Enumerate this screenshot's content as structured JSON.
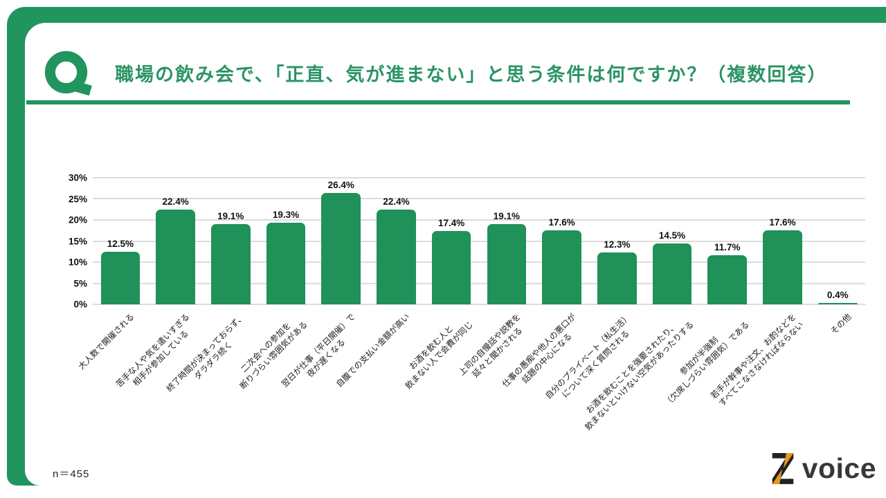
{
  "accent_color": "#21955e",
  "bar_color": "#1f9159",
  "logo_orange": "#e8961e",
  "header": {
    "q_mark": "Q",
    "title": "職場の飲み会で、「正直、気が進まない」と思う条件は何ですか？（複数回答）"
  },
  "footer": {
    "sample_size": "n＝455",
    "brand_text": "voice"
  },
  "chart_data": {
    "type": "bar",
    "title": "職場の飲み会で、「正直、気が進まない」と思う条件は何ですか？（複数回答）",
    "xlabel": "",
    "ylabel": "",
    "ylim": [
      0,
      30
    ],
    "grid": true,
    "yticks": [
      "30%",
      "25%",
      "20%",
      "15%",
      "10%",
      "5%",
      "0%"
    ],
    "categories": [
      "大人数で開催される",
      "苦手な人や気を遣いすぎる\n相手が参加している",
      "終了時間が決まっておらず、\nダラダラ続く",
      "二次会への参加を\n断りづらい雰囲気がある",
      "翌日が仕事（平日開催）で\n夜が遅くなる",
      "自腹での支払い金額が高い",
      "お酒を飲む人と\n飲まない人で会費が同じ",
      "上司の自慢話や説教を\n延々と聞かされる",
      "仕事の愚痴や他人の悪口が\n話題の中心になる",
      "自分のプライベート（私生活）\nについて深く質問される",
      "お酒を飲むことを強要されたり、\n飲まないといけない空気があったりする",
      "参加が半強制\n（欠席しづらい雰囲気）である",
      "若手が幹事や注文、お酌などを\nすべてこなさなければならない",
      "その他"
    ],
    "values": [
      12.5,
      22.4,
      19.1,
      19.3,
      26.4,
      22.4,
      17.4,
      19.1,
      17.6,
      12.3,
      14.5,
      11.7,
      17.6,
      0.4
    ],
    "value_labels": [
      "12.5%",
      "22.4%",
      "19.1%",
      "19.3%",
      "26.4%",
      "22.4%",
      "17.4%",
      "19.1%",
      "17.6%",
      "12.3%",
      "14.5%",
      "11.7%",
      "17.6%",
      "0.4%"
    ]
  }
}
